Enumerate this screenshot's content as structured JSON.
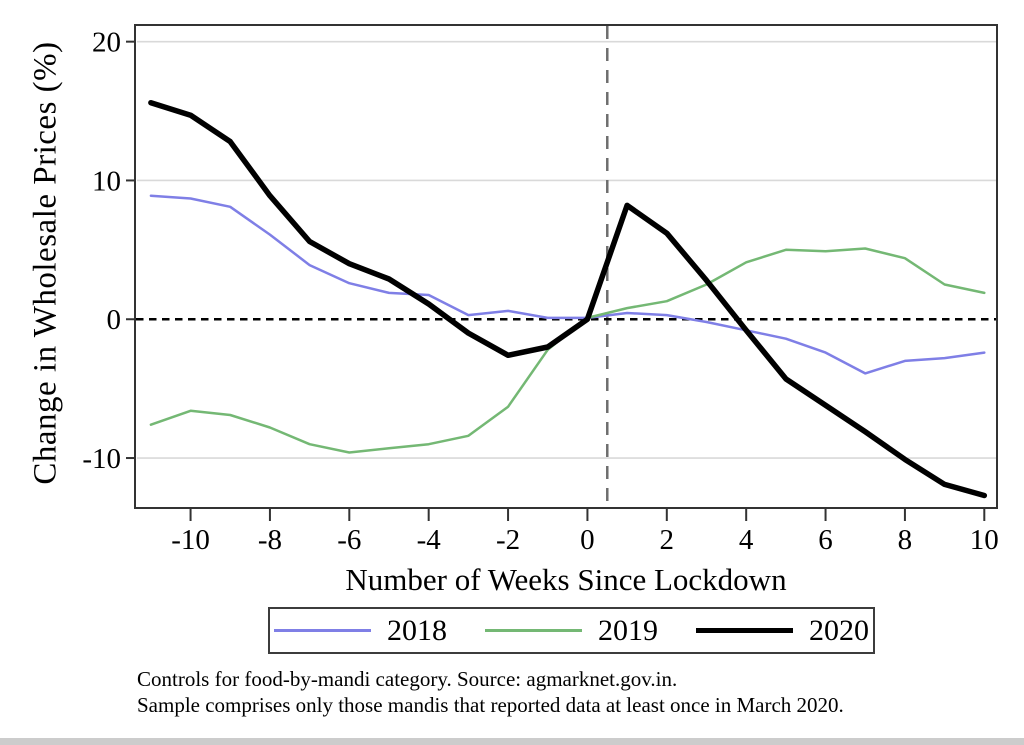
{
  "figure": {
    "notes": [
      "Controls for food-by-mandi category. Source: agmarknet.gov.in.",
      "Sample comprises only those mandis that reported data at least once in March 2020."
    ]
  },
  "chart_data": {
    "type": "line",
    "title": "",
    "xlabel": "Number of Weeks Since Lockdown",
    "ylabel": "Change in Wholesale Prices (%)",
    "x": [
      -11,
      -10,
      -9,
      -8,
      -7,
      -6,
      -5,
      -4,
      -3,
      -2,
      -1,
      0,
      1,
      2,
      3,
      4,
      5,
      6,
      7,
      8,
      9,
      10
    ],
    "series": [
      {
        "name": "2018",
        "color": "#7f7fe6",
        "stroke_width": 2.5,
        "values": [
          8.9,
          8.7,
          8.1,
          6.1,
          3.9,
          2.6,
          1.9,
          1.75,
          0.3,
          0.6,
          0.1,
          0.1,
          0.45,
          0.3,
          -0.2,
          -0.8,
          -1.4,
          -2.4,
          -3.9,
          -3.0,
          -2.8,
          -2.4
        ]
      },
      {
        "name": "2019",
        "color": "#74b874",
        "stroke_width": 2.5,
        "values": [
          -7.6,
          -6.6,
          -6.9,
          -7.8,
          -9.0,
          -9.6,
          -9.3,
          -9.0,
          -8.4,
          -6.3,
          -2.2,
          0.1,
          0.8,
          1.3,
          2.5,
          4.1,
          5.0,
          4.9,
          5.1,
          4.4,
          2.5,
          1.9
        ]
      },
      {
        "name": "2020",
        "color": "#000000",
        "stroke_width": 5.5,
        "values": [
          15.6,
          14.7,
          12.8,
          8.9,
          5.6,
          4.0,
          2.9,
          1.1,
          -1.0,
          -2.6,
          -2.0,
          0.0,
          8.2,
          6.2,
          2.8,
          -0.8,
          -4.3,
          -6.2,
          -8.1,
          -10.1,
          -11.9,
          -12.7
        ]
      }
    ],
    "x_ticks": [
      -10,
      -8,
      -6,
      -4,
      -2,
      0,
      2,
      4,
      6,
      8,
      10
    ],
    "y_ticks": [
      20,
      10,
      0,
      -10
    ],
    "xlim": [
      -11.4,
      10.32
    ],
    "ylim": [
      -13.6,
      21.2
    ],
    "grid": "horizontal light-gray lines at y ticks (except 0), boxed plot frame",
    "legend_position": "boxed, centered below x-axis title",
    "reference_lines": {
      "horizontal_dashed_black_at_y": 0,
      "vertical_dashed_gray_at_x": 0.5
    },
    "colors": {
      "frame": "#333333",
      "gridline": "#d9d9d9",
      "zero_line": "#000000",
      "vertical_reference": "#6e6e6e"
    }
  }
}
